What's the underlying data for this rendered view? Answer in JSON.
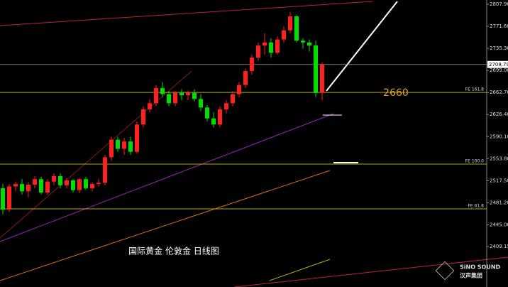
{
  "chart_data": {
    "type": "candlestick",
    "title": "国际黄金 伦敦金 日线图",
    "annotation": "2660",
    "brand": "SiNO SOUND",
    "brand_cn": "汉声集团",
    "up_color": "#ff2020",
    "down_color": "#00e000",
    "open": [
      2505,
      2470,
      2508,
      2512,
      2500,
      2511,
      2520,
      2498,
      2516,
      2525,
      2510,
      2518,
      2502,
      2520,
      2505,
      2512,
      2514,
      2556,
      2585,
      2570,
      2582,
      2565,
      2610,
      2635,
      2645,
      2670,
      2660,
      2645,
      2662,
      2658,
      2662,
      2652,
      2638,
      2620,
      2610,
      2635,
      2645,
      2660,
      2675,
      2698,
      2720,
      2740,
      2745,
      2728,
      2750,
      2765,
      2788,
      2748,
      2745,
      2740,
      2662
    ],
    "high": [
      2512,
      2512,
      2516,
      2520,
      2515,
      2525,
      2524,
      2520,
      2530,
      2530,
      2522,
      2520,
      2522,
      2524,
      2515,
      2520,
      2560,
      2590,
      2590,
      2588,
      2590,
      2615,
      2640,
      2652,
      2675,
      2680,
      2665,
      2665,
      2668,
      2666,
      2668,
      2660,
      2642,
      2630,
      2640,
      2650,
      2665,
      2680,
      2702,
      2725,
      2745,
      2760,
      2752,
      2755,
      2772,
      2795,
      2790,
      2752,
      2750,
      2748,
      2712
    ],
    "low": [
      2462,
      2466,
      2500,
      2495,
      2490,
      2505,
      2495,
      2494,
      2510,
      2505,
      2505,
      2498,
      2497,
      2503,
      2500,
      2508,
      2510,
      2550,
      2565,
      2560,
      2560,
      2562,
      2605,
      2630,
      2640,
      2655,
      2640,
      2640,
      2650,
      2650,
      2648,
      2632,
      2615,
      2605,
      2605,
      2628,
      2640,
      2655,
      2670,
      2692,
      2715,
      2725,
      2720,
      2725,
      2745,
      2760,
      2745,
      2735,
      2730,
      2655,
      2650
    ],
    "close": [
      2470,
      2508,
      2512,
      2500,
      2511,
      2520,
      2498,
      2516,
      2525,
      2510,
      2518,
      2502,
      2520,
      2505,
      2512,
      2514,
      2556,
      2585,
      2570,
      2582,
      2565,
      2610,
      2635,
      2645,
      2670,
      2660,
      2645,
      2662,
      2658,
      2662,
      2652,
      2638,
      2620,
      2610,
      2635,
      2645,
      2660,
      2675,
      2698,
      2720,
      2740,
      2745,
      2728,
      2750,
      2765,
      2788,
      2748,
      2745,
      2740,
      2662,
      2708.79
    ],
    "ylim": [
      2342.48,
      2814.92
    ],
    "yticks": [
      {
        "value": 2807.9,
        "label": "2807.90"
      },
      {
        "value": 2771.6,
        "label": "2771.60"
      },
      {
        "value": 2735.3,
        "label": "2735.30"
      },
      {
        "value": 2699,
        "label": "2699.00"
      },
      {
        "value": 2662.7,
        "label": "2662.70"
      },
      {
        "value": 2626.4,
        "label": "2626.40"
      },
      {
        "value": 2590.1,
        "label": "2590.10"
      },
      {
        "value": 2553.8,
        "label": "2553.80"
      },
      {
        "value": 2517.5,
        "label": "2517.50"
      },
      {
        "value": 2481.2,
        "label": "2481.20"
      },
      {
        "value": 2445,
        "label": "2445.00"
      },
      {
        "value": 2409.15,
        "label": "2409.15"
      }
    ],
    "last_price": {
      "value": 2708.79,
      "label": "2708.79"
    },
    "levels": [
      {
        "value": 2662.7,
        "label": "FE 161.8"
      },
      {
        "value": 2544.8,
        "label": "FE 100.0"
      },
      {
        "value": 2471.1,
        "label": "FE 61.8"
      }
    ],
    "level_color": "#b0b000"
  }
}
